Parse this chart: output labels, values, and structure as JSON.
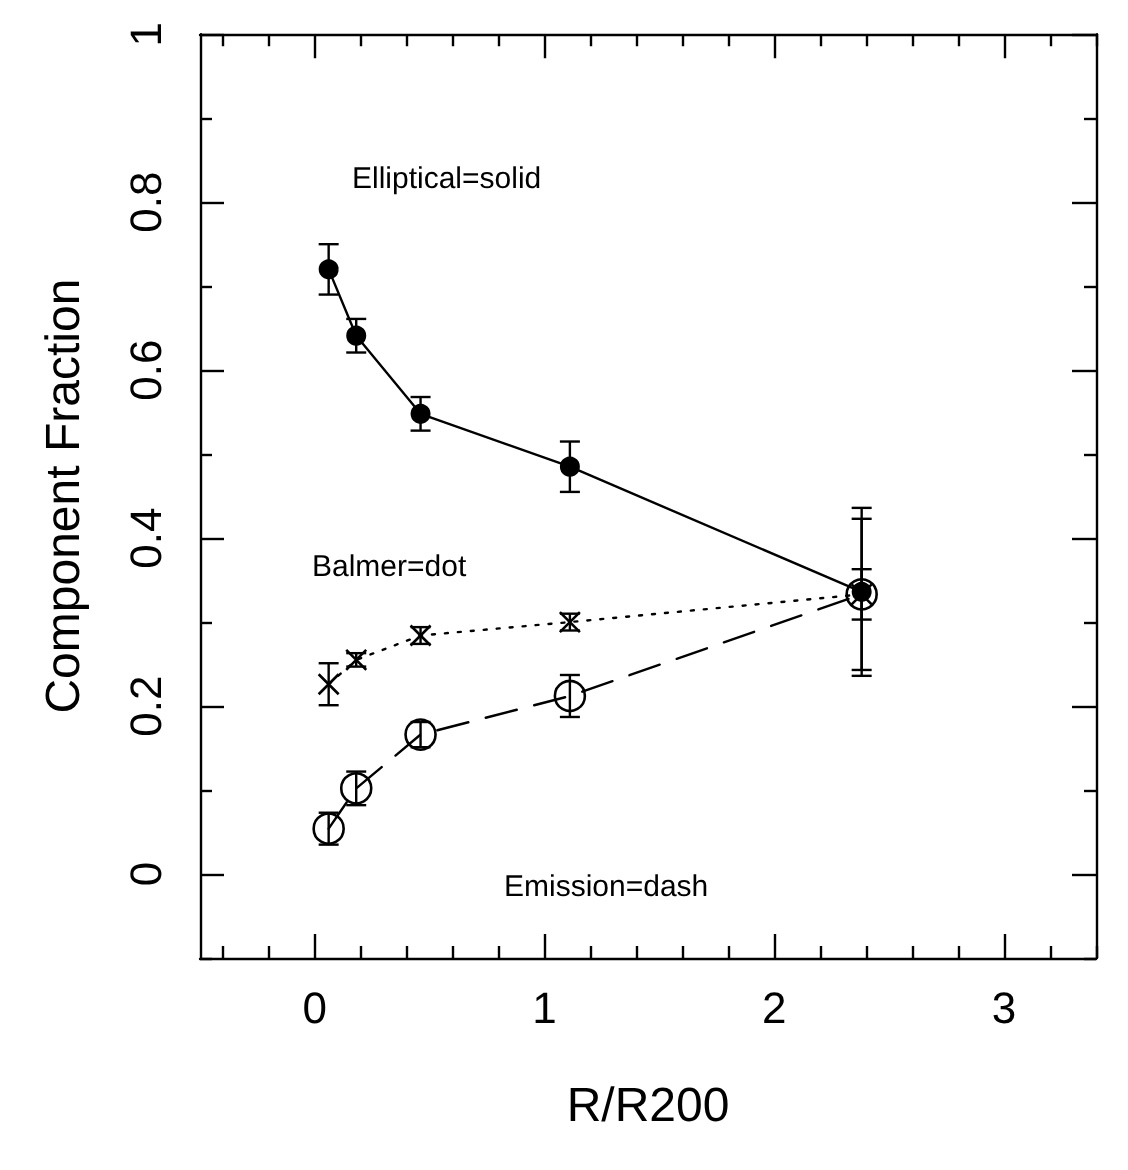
{
  "chart_data": {
    "type": "line",
    "xlabel": "R/R200",
    "ylabel": "Component Fraction",
    "x": [
      0.06,
      0.18,
      0.46,
      1.11,
      2.38
    ],
    "series": [
      {
        "color": "#000000",
        "marker": "circle",
        "line_style": "solid",
        "values": [
          0.72,
          0.641,
          0.548,
          0.485,
          0.336
        ],
        "errors": [
          0.03,
          0.02,
          0.02,
          0.03,
          0.1
        ]
      },
      {
        "color": "#000000",
        "marker": "cross",
        "line_style": "dotted",
        "values": [
          0.226,
          0.255,
          0.284,
          0.3,
          0.333
        ],
        "errors": [
          0.025,
          0.008,
          0.01,
          0.01,
          0.03
        ]
      },
      {
        "color": "#000000",
        "marker": "circle",
        "line_style": "dashed",
        "values": [
          0.054,
          0.102,
          0.166,
          0.212,
          0.333
        ],
        "errors": [
          0.019,
          0.02,
          0.015,
          0.025,
          0.09
        ]
      }
    ],
    "annotations": [
      "Elliptical=solid",
      "Balmer=dot",
      "Emission=dash"
    ],
    "xlim": [
      -0.5,
      3.4
    ],
    "xticks": [
      0,
      1,
      2,
      3
    ],
    "ylim": [
      -0.1,
      1
    ],
    "yticks": [
      0,
      0.2,
      0.4,
      0.6,
      0.8,
      1
    ],
    "grid": false
  }
}
